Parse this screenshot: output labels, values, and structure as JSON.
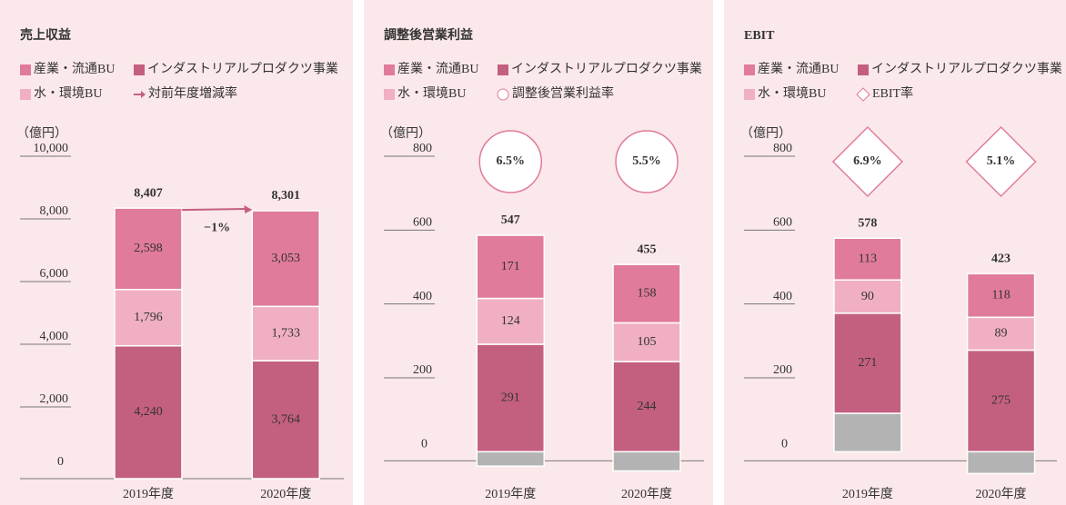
{
  "chart_data": [
    {
      "type": "bar",
      "title": "売上収益",
      "unit_label": "（億円）",
      "categories": [
        "2019年度",
        "2020年度"
      ],
      "series": [
        {
          "name": "インダストリアルプロダクツ事業",
          "color": "#c4607f",
          "values": [
            4240,
            3764
          ],
          "value_labels": [
            "4,240",
            "3,764"
          ]
        },
        {
          "name": "水・環境BU",
          "color": "#f0b0c2",
          "values": [
            1796,
            1733
          ],
          "value_labels": [
            "1,796",
            "1,733"
          ]
        },
        {
          "name": "産業・流通BU",
          "color": "#e07b9b",
          "values": [
            2598,
            3053
          ],
          "value_labels": [
            "2,598",
            "3,053"
          ]
        }
      ],
      "totals": [
        8407,
        8301
      ],
      "total_labels": [
        "8,407",
        "8,301"
      ],
      "change": {
        "value": -1,
        "label": "−1%"
      },
      "rate_legend": "対前年度増減率",
      "rate_marker": "arrow",
      "ylim": [
        0,
        10000
      ],
      "yticks": [
        0,
        {
          "value": 2000,
          "label": "2,000"
        },
        {
          "value": 4000,
          "label": "4,000"
        },
        {
          "value": 6000,
          "label": "6,000"
        },
        {
          "value": 8000,
          "label": "8,000"
        },
        {
          "value": 10000,
          "label": "10,000"
        }
      ]
    },
    {
      "type": "bar",
      "title": "調整後営業利益",
      "unit_label": "（億円）",
      "categories": [
        "2019年度",
        "2020年度"
      ],
      "series": [
        {
          "color": "#b3b3b3",
          "values": [
            -39,
            -52
          ]
        },
        {
          "name": "インダストリアルプロダクツ事業",
          "color": "#c4607f",
          "values": [
            291,
            244
          ]
        },
        {
          "name": "水・環境BU",
          "color": "#f0b0c2",
          "values": [
            124,
            105
          ]
        },
        {
          "name": "産業・流通BU",
          "color": "#e07b9b",
          "values": [
            171,
            158
          ]
        }
      ],
      "totals": [
        547,
        455
      ],
      "rates": [
        6.5,
        5.5
      ],
      "rate_labels": [
        "6.5%",
        "5.5%"
      ],
      "rate_legend": "調整後営業利益率",
      "rate_marker": "circle",
      "ylim": [
        -100,
        800
      ],
      "yticks": [
        0,
        200,
        400,
        600,
        800
      ]
    },
    {
      "type": "bar",
      "title": "EBIT",
      "unit_label": "（億円）",
      "categories": [
        "2019年度",
        "2020年度"
      ],
      "series": [
        {
          "color": "#b3b3b3",
          "values": [
            104,
            -59
          ]
        },
        {
          "name": "インダストリアルプロダクツ事業",
          "color": "#c4607f",
          "values": [
            271,
            275
          ]
        },
        {
          "name": "水・環境BU",
          "color": "#f0b0c2",
          "values": [
            90,
            89
          ]
        },
        {
          "name": "産業・流通BU",
          "color": "#e07b9b",
          "values": [
            113,
            118
          ]
        }
      ],
      "totals": [
        578,
        423
      ],
      "rates": [
        6.9,
        5.1
      ],
      "rate_labels": [
        "6.9%",
        "5.1%"
      ],
      "rate_legend": "EBIT率",
      "rate_marker": "diamond",
      "ylim": [
        -100,
        800
      ],
      "yticks": [
        0,
        200,
        400,
        600,
        800
      ]
    }
  ]
}
